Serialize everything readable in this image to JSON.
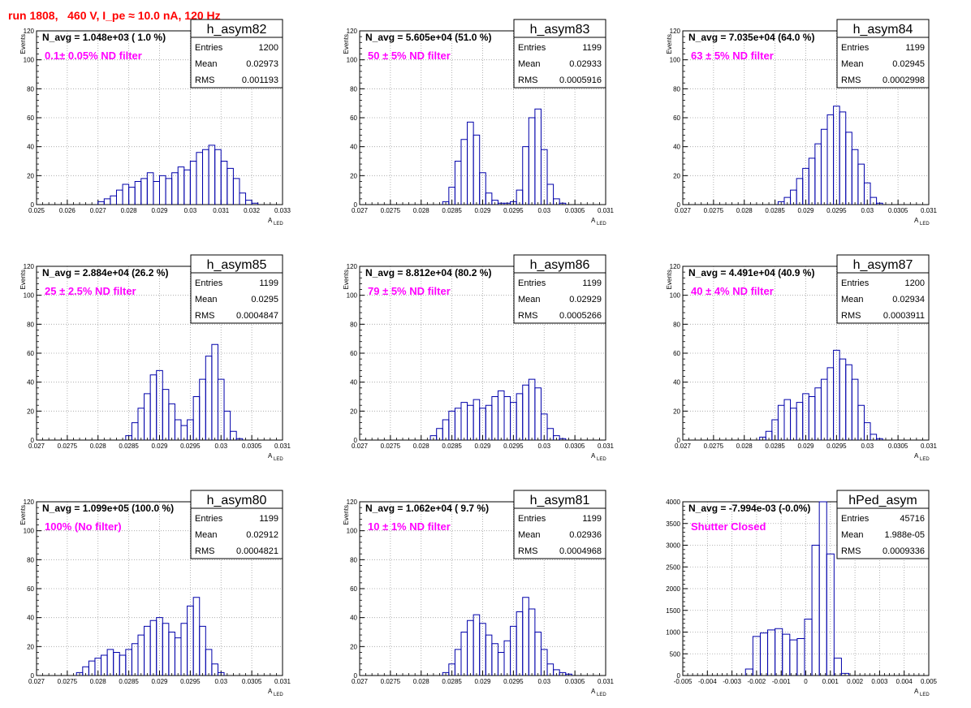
{
  "header": {
    "run_title": "run 1808,   460 V, I_pe ≈ 10.0 nA, 120 Hz"
  },
  "colors": {
    "histogram_line": "#0000aa",
    "title_red": "#ff0000",
    "annotation_magenta": "#ff00ff",
    "axes": "#000000",
    "grid": "#a0a0a0"
  },
  "chart_data": [
    {
      "type": "bar",
      "name": "h_asym82",
      "title": "h_asym82",
      "navg_text": "N_avg = 1.048e+03 ( 1.0 %)",
      "annotation": "0.1± 0.05% ND filter",
      "stats": [
        [
          "Entries",
          "1200"
        ],
        [
          "Mean",
          "0.02973"
        ],
        [
          "RMS",
          "0.001193"
        ]
      ],
      "xlabel": "A",
      "xlabel_sub": "LED",
      "ylabel": "Events",
      "xlim": [
        0.025,
        0.033
      ],
      "xticks": [
        "0.025",
        "0.026",
        "0.027",
        "0.028",
        "0.029",
        "0.03",
        "0.031",
        "0.032",
        "0.033"
      ],
      "ylim": [
        0,
        120
      ],
      "yticks": [
        "0",
        "20",
        "40",
        "60",
        "80",
        "100",
        "120"
      ],
      "bins": [
        0.0271,
        0.0273,
        0.0275,
        0.0277,
        0.0279,
        0.0281,
        0.0283,
        0.0285,
        0.0287,
        0.0289,
        0.0291,
        0.0293,
        0.0295,
        0.0297,
        0.0299,
        0.0301,
        0.0303,
        0.0305,
        0.0307,
        0.0309,
        0.0311,
        0.0313,
        0.0315,
        0.0317,
        0.0319,
        0.0321
      ],
      "values": [
        2,
        4,
        6,
        10,
        14,
        12,
        16,
        18,
        22,
        16,
        20,
        18,
        22,
        26,
        24,
        30,
        36,
        38,
        41,
        38,
        30,
        25,
        18,
        8,
        3,
        1
      ]
    },
    {
      "type": "bar",
      "name": "h_asym83",
      "title": "h_asym83",
      "navg_text": "N_avg = 5.605e+04 (51.0 %)",
      "annotation": "50 ± 5% ND filter",
      "stats": [
        [
          "Entries",
          "1199"
        ],
        [
          "Mean",
          "0.02933"
        ],
        [
          "RMS",
          "0.0005916"
        ]
      ],
      "xlabel": "A",
      "xlabel_sub": "LED",
      "ylabel": "Events",
      "xlim": [
        0.027,
        0.031
      ],
      "xticks": [
        "0.027",
        "0.0275",
        "0.028",
        "0.0285",
        "0.029",
        "0.0295",
        "0.03",
        "0.0305",
        "0.031"
      ],
      "ylim": [
        0,
        120
      ],
      "yticks": [
        "0",
        "20",
        "40",
        "60",
        "80",
        "100",
        "120"
      ],
      "bins": [
        0.0284,
        0.0285,
        0.0286,
        0.0287,
        0.0288,
        0.0289,
        0.029,
        0.0291,
        0.0292,
        0.0293,
        0.0294,
        0.0295,
        0.0296,
        0.0297,
        0.0298,
        0.0299,
        0.03,
        0.0301,
        0.0302,
        0.0303
      ],
      "values": [
        2,
        12,
        30,
        45,
        57,
        48,
        22,
        8,
        3,
        1,
        1,
        2,
        10,
        40,
        60,
        66,
        38,
        14,
        4,
        1
      ]
    },
    {
      "type": "bar",
      "name": "h_asym84",
      "title": "h_asym84",
      "navg_text": "N_avg = 7.035e+04 (64.0 %)",
      "annotation": "63 ± 5% ND filter",
      "stats": [
        [
          "Entries",
          "1199"
        ],
        [
          "Mean",
          "0.02945"
        ],
        [
          "RMS",
          "0.0002998"
        ]
      ],
      "xlabel": "A",
      "xlabel_sub": "LED",
      "ylabel": "Events",
      "xlim": [
        0.027,
        0.031
      ],
      "xticks": [
        "0.027",
        "0.0275",
        "0.028",
        "0.0285",
        "0.029",
        "0.0295",
        "0.03",
        "0.0305",
        "0.031"
      ],
      "ylim": [
        0,
        120
      ],
      "yticks": [
        "0",
        "20",
        "40",
        "60",
        "80",
        "100",
        "120"
      ],
      "bins": [
        0.0286,
        0.0287,
        0.0288,
        0.0289,
        0.029,
        0.0291,
        0.0292,
        0.0293,
        0.0294,
        0.0295,
        0.0296,
        0.0297,
        0.0298,
        0.0299,
        0.03,
        0.0301,
        0.0302
      ],
      "values": [
        2,
        5,
        10,
        18,
        25,
        32,
        42,
        52,
        62,
        68,
        64,
        50,
        38,
        28,
        15,
        5,
        1
      ]
    },
    {
      "type": "bar",
      "name": "h_asym85",
      "title": "h_asym85",
      "navg_text": "N_avg = 2.884e+04 (26.2 %)",
      "annotation": "25 ± 2.5% ND filter",
      "stats": [
        [
          "Entries",
          "1199"
        ],
        [
          "Mean",
          "0.0295"
        ],
        [
          "RMS",
          "0.0004847"
        ]
      ],
      "xlabel": "A",
      "xlabel_sub": "LED",
      "ylabel": "Events",
      "xlim": [
        0.027,
        0.031
      ],
      "xticks": [
        "0.027",
        "0.0275",
        "0.028",
        "0.0285",
        "0.029",
        "0.0295",
        "0.03",
        "0.0305",
        "0.031"
      ],
      "ylim": [
        0,
        120
      ],
      "yticks": [
        "0",
        "20",
        "40",
        "60",
        "80",
        "100",
        "120"
      ],
      "bins": [
        0.0285,
        0.0286,
        0.0287,
        0.0288,
        0.0289,
        0.029,
        0.0291,
        0.0292,
        0.0293,
        0.0294,
        0.0295,
        0.0296,
        0.0297,
        0.0298,
        0.0299,
        0.03,
        0.0301,
        0.0302,
        0.0303
      ],
      "values": [
        3,
        12,
        22,
        32,
        45,
        48,
        35,
        25,
        14,
        10,
        14,
        30,
        42,
        58,
        66,
        42,
        20,
        6,
        1
      ]
    },
    {
      "type": "bar",
      "name": "h_asym86",
      "title": "h_asym86",
      "navg_text": "N_avg = 8.812e+04 (80.2 %)",
      "annotation": "79 ± 5% ND filter",
      "stats": [
        [
          "Entries",
          "1199"
        ],
        [
          "Mean",
          "0.02929"
        ],
        [
          "RMS",
          "0.0005266"
        ]
      ],
      "xlabel": "A",
      "xlabel_sub": "LED",
      "ylabel": "Events",
      "xlim": [
        0.027,
        0.031
      ],
      "xticks": [
        "0.027",
        "0.0275",
        "0.028",
        "0.0285",
        "0.029",
        "0.0295",
        "0.03",
        "0.0305",
        "0.031"
      ],
      "ylim": [
        0,
        120
      ],
      "yticks": [
        "0",
        "20",
        "40",
        "60",
        "80",
        "100",
        "120"
      ],
      "bins": [
        0.0282,
        0.0283,
        0.0284,
        0.0285,
        0.0286,
        0.0287,
        0.0288,
        0.0289,
        0.029,
        0.0291,
        0.0292,
        0.0293,
        0.0294,
        0.0295,
        0.0296,
        0.0297,
        0.0298,
        0.0299,
        0.03,
        0.0301,
        0.0302,
        0.0303
      ],
      "values": [
        3,
        8,
        14,
        20,
        22,
        26,
        24,
        28,
        22,
        24,
        30,
        34,
        30,
        26,
        32,
        38,
        42,
        36,
        18,
        8,
        3,
        1
      ]
    },
    {
      "type": "bar",
      "name": "h_asym87",
      "title": "h_asym87",
      "navg_text": "N_avg = 4.491e+04 (40.9 %)",
      "annotation": "40 ± 4% ND filter",
      "stats": [
        [
          "Entries",
          "1200"
        ],
        [
          "Mean",
          "0.02934"
        ],
        [
          "RMS",
          "0.0003911"
        ]
      ],
      "xlabel": "A",
      "xlabel_sub": "LED",
      "ylabel": "Events",
      "xlim": [
        0.027,
        0.031
      ],
      "xticks": [
        "0.027",
        "0.0275",
        "0.028",
        "0.0285",
        "0.029",
        "0.0295",
        "0.03",
        "0.0305",
        "0.031"
      ],
      "ylim": [
        0,
        120
      ],
      "yticks": [
        "0",
        "20",
        "40",
        "60",
        "80",
        "100",
        "120"
      ],
      "bins": [
        0.0283,
        0.0284,
        0.0285,
        0.0286,
        0.0287,
        0.0288,
        0.0289,
        0.029,
        0.0291,
        0.0292,
        0.0293,
        0.0294,
        0.0295,
        0.0296,
        0.0297,
        0.0298,
        0.0299,
        0.03,
        0.0301,
        0.0302
      ],
      "values": [
        2,
        6,
        14,
        24,
        28,
        22,
        26,
        32,
        30,
        36,
        42,
        50,
        62,
        56,
        52,
        42,
        24,
        12,
        4,
        1
      ]
    },
    {
      "type": "bar",
      "name": "h_asym80",
      "title": "h_asym80",
      "navg_text": "N_avg = 1.099e+05 (100.0 %)",
      "annotation": "100% (No filter)",
      "stats": [
        [
          "Entries",
          "1199"
        ],
        [
          "Mean",
          "0.02912"
        ],
        [
          "RMS",
          "0.0004821"
        ]
      ],
      "xlabel": "A",
      "xlabel_sub": "LED",
      "ylabel": "Events",
      "xlim": [
        0.027,
        0.031
      ],
      "xticks": [
        "0.027",
        "0.0275",
        "0.028",
        "0.0285",
        "0.029",
        "0.0295",
        "0.03",
        "0.0305",
        "0.031"
      ],
      "ylim": [
        0,
        120
      ],
      "yticks": [
        "0",
        "20",
        "40",
        "60",
        "80",
        "100",
        "120"
      ],
      "bins": [
        0.0277,
        0.0278,
        0.0279,
        0.028,
        0.0281,
        0.0282,
        0.0283,
        0.0284,
        0.0285,
        0.0286,
        0.0287,
        0.0288,
        0.0289,
        0.029,
        0.0291,
        0.0292,
        0.0293,
        0.0294,
        0.0295,
        0.0296,
        0.0297,
        0.0298,
        0.0299,
        0.03
      ],
      "values": [
        2,
        6,
        10,
        12,
        14,
        18,
        16,
        14,
        18,
        22,
        28,
        34,
        38,
        40,
        36,
        30,
        26,
        36,
        48,
        54,
        34,
        18,
        8,
        2
      ]
    },
    {
      "type": "bar",
      "name": "h_asym81",
      "title": "h_asym81",
      "navg_text": "N_avg = 1.062e+04 ( 9.7 %)",
      "annotation": "10 ± 1% ND filter",
      "stats": [
        [
          "Entries",
          "1199"
        ],
        [
          "Mean",
          "0.02936"
        ],
        [
          "RMS",
          "0.0004968"
        ]
      ],
      "xlabel": "A",
      "xlabel_sub": "LED",
      "ylabel": "Events",
      "xlim": [
        0.027,
        0.031
      ],
      "xticks": [
        "0.027",
        "0.0275",
        "0.028",
        "0.0285",
        "0.029",
        "0.0295",
        "0.03",
        "0.0305",
        "0.031"
      ],
      "ylim": [
        0,
        120
      ],
      "yticks": [
        "0",
        "20",
        "40",
        "60",
        "80",
        "100",
        "120"
      ],
      "bins": [
        0.0284,
        0.0285,
        0.0286,
        0.0287,
        0.0288,
        0.0289,
        0.029,
        0.0291,
        0.0292,
        0.0293,
        0.0294,
        0.0295,
        0.0296,
        0.0297,
        0.0298,
        0.0299,
        0.03,
        0.0301,
        0.0302,
        0.0303,
        0.0304
      ],
      "values": [
        2,
        8,
        18,
        30,
        38,
        42,
        36,
        28,
        22,
        16,
        24,
        34,
        44,
        54,
        46,
        30,
        18,
        8,
        4,
        2,
        1
      ]
    },
    {
      "type": "bar",
      "name": "hPed_asym",
      "title": "hPed_asym",
      "navg_text": "N_avg = -7.994e-03 (-0.0%)",
      "annotation": "Shutter Closed",
      "stats": [
        [
          "Entries",
          "45716"
        ],
        [
          "Mean",
          "1.988e-05"
        ],
        [
          "RMS",
          "0.0009336"
        ]
      ],
      "xlabel": "A",
      "xlabel_sub": "LED",
      "ylabel": "",
      "xlim": [
        -0.005,
        0.005
      ],
      "xticks": [
        "-0.005",
        "-0.004",
        "-0.003",
        "-0.002",
        "-0.001",
        "0",
        "0.001",
        "0.002",
        "0.003",
        "0.004",
        "0.005"
      ],
      "ylim": [
        0,
        4000
      ],
      "yticks": [
        "0",
        "500",
        "1000",
        "1500",
        "2000",
        "2500",
        "3000",
        "3500",
        "4000"
      ],
      "bins": [
        -0.0023,
        -0.002,
        -0.0017,
        -0.0014,
        -0.0011,
        -0.0008,
        -0.0005,
        -0.0002,
        0.0001,
        0.0004,
        0.0007,
        0.001,
        0.0013,
        0.0016
      ],
      "values": [
        150,
        900,
        980,
        1050,
        1080,
        950,
        820,
        850,
        1300,
        3000,
        4000,
        2800,
        400,
        50
      ]
    }
  ]
}
